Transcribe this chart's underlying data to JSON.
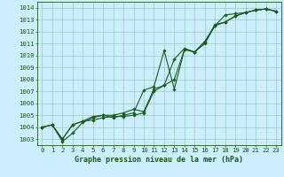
{
  "title": "Graphe pression niveau de la mer (hPa)",
  "bg_color": "#cceeff",
  "grid_color": "#99ccbb",
  "line_color": "#1a5c1a",
  "xlim": [
    -0.5,
    23.5
  ],
  "ylim": [
    1002.5,
    1014.5
  ],
  "yticks": [
    1003,
    1004,
    1005,
    1006,
    1007,
    1008,
    1009,
    1010,
    1011,
    1012,
    1013,
    1014
  ],
  "xticks": [
    0,
    1,
    2,
    3,
    4,
    5,
    6,
    7,
    8,
    9,
    10,
    11,
    12,
    13,
    14,
    15,
    16,
    17,
    18,
    19,
    20,
    21,
    22,
    23
  ],
  "series1": [
    1004.0,
    1004.2,
    1002.8,
    1003.5,
    1004.4,
    1004.8,
    1005.0,
    1004.8,
    1005.0,
    1005.2,
    1007.1,
    1007.4,
    1010.4,
    1007.2,
    1010.5,
    1010.3,
    1011.2,
    1012.5,
    1013.4,
    1013.5,
    1013.6,
    1013.8,
    1013.9,
    1013.7
  ],
  "series2": [
    1004.0,
    1004.2,
    1003.0,
    1004.2,
    1004.5,
    1004.9,
    1005.0,
    1005.0,
    1005.2,
    1005.5,
    1005.3,
    1007.2,
    1007.5,
    1009.7,
    1010.6,
    1010.3,
    1011.1,
    1012.6,
    1012.8,
    1013.3,
    1013.6,
    1013.8,
    1013.9,
    1013.7
  ],
  "series3": [
    1004.0,
    1004.2,
    1003.0,
    1004.2,
    1004.5,
    1004.6,
    1004.8,
    1004.9,
    1004.9,
    1005.0,
    1005.2,
    1007.0,
    1007.5,
    1008.0,
    1010.5,
    1010.3,
    1011.0,
    1012.5,
    1012.8,
    1013.3,
    1013.6,
    1013.8,
    1013.9,
    1013.7
  ],
  "ylabel_fontsize": 5.2,
  "xlabel_fontsize": 6.0,
  "title_fontsize": 6.5,
  "linewidth": 0.8,
  "markersize": 1.8
}
